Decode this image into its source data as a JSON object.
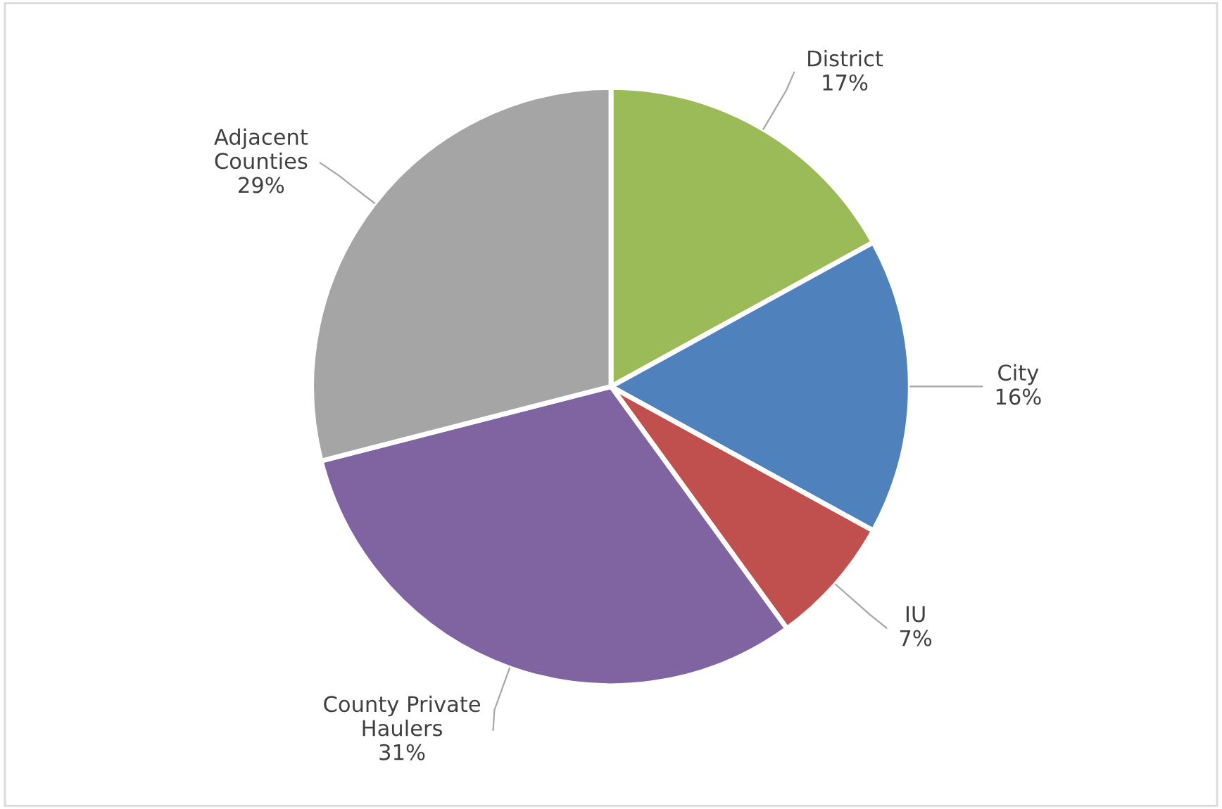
{
  "chart_data": {
    "type": "pie",
    "categories": [
      "District",
      "City",
      "IU",
      "County Private\nHaulers",
      "Adjacent\nCounties"
    ],
    "values": [
      17,
      16,
      7,
      31,
      29
    ],
    "value_labels": [
      "17%",
      "16%",
      "7%",
      "31%",
      "29%"
    ],
    "colors": [
      "#9bbb59",
      "#4f81bd",
      "#c0504d",
      "#8064a2",
      "#a5a5a5"
    ],
    "legend": false
  }
}
